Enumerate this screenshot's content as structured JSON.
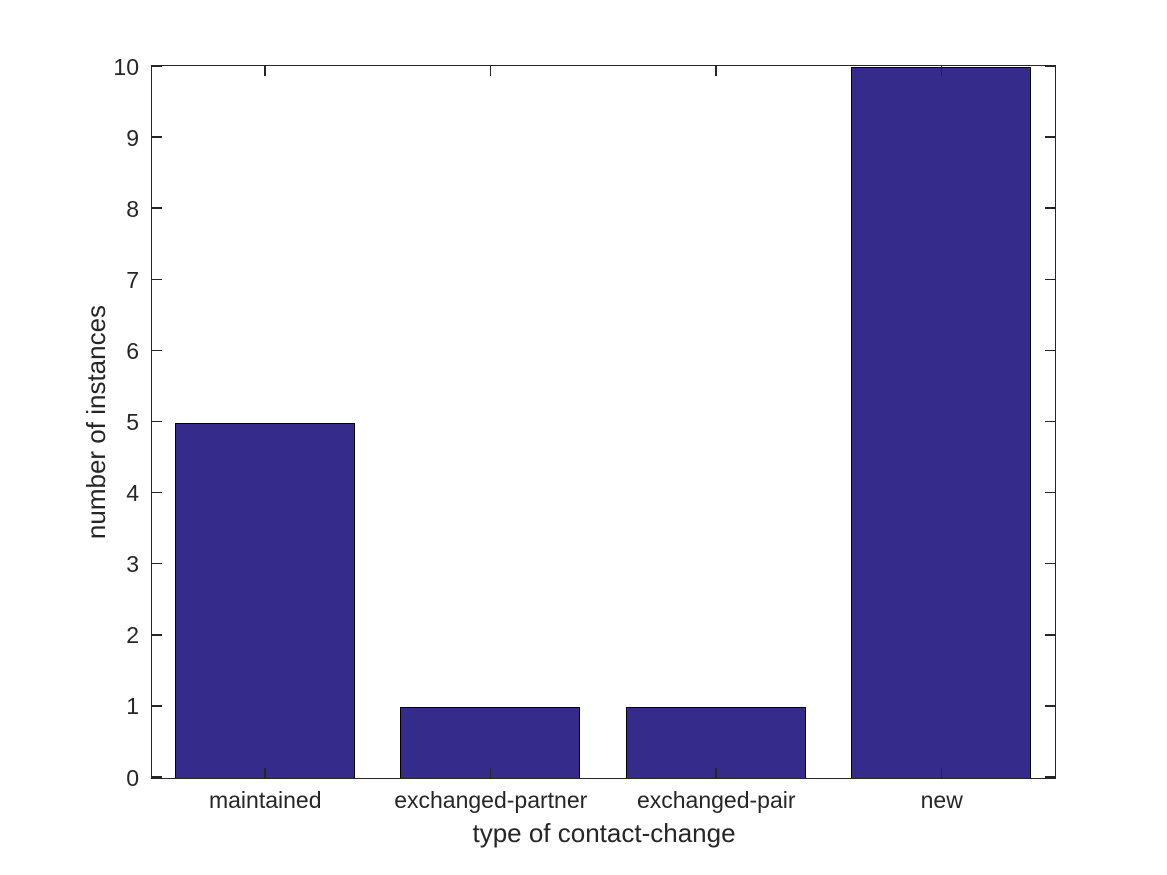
{
  "chart_data": {
    "type": "bar",
    "title": "",
    "categories": [
      "maintained",
      "exchanged-partner",
      "exchanged-pair",
      "new"
    ],
    "values": [
      5,
      1,
      1,
      10
    ],
    "xlabel": "type of contact-change",
    "ylabel": "number of instances",
    "ylim": [
      0,
      10
    ],
    "yticks": [
      0,
      1,
      2,
      3,
      4,
      5,
      6,
      7,
      8,
      9,
      10
    ],
    "grid": false,
    "legend": false,
    "box": true,
    "tick_direction": "in",
    "bar_width_fraction": 0.8,
    "bar_color": "#352B8B",
    "bar_edge_color": "#000000",
    "axis_color": "#262626",
    "text_color": "#262626",
    "background_color": "#FFFFFF"
  }
}
